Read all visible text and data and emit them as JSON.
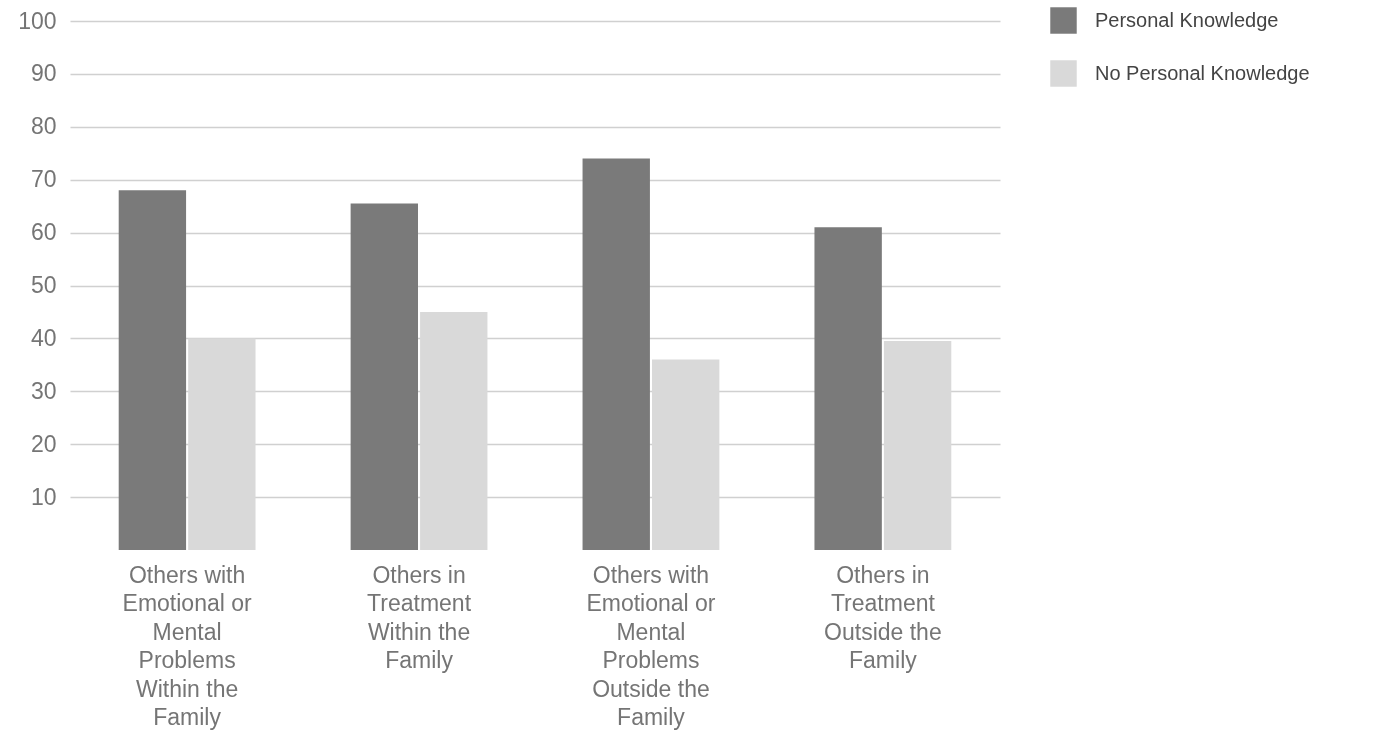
{
  "chart_data": {
    "type": "bar",
    "categories": [
      "Others with Emotional or Mental Problems Within the Family",
      "Others in Treatment Within the Family",
      "Others with Emotional or Mental Problems Outside the Family",
      "Others in Treatment Outside the Family"
    ],
    "series": [
      {
        "name": "Personal Knowledge",
        "color": "#7a7a7a",
        "values": [
          68,
          65.5,
          74,
          61
        ]
      },
      {
        "name": "No Personal Knowledge",
        "color": "#d9d9d9",
        "values": [
          40,
          45,
          36,
          39.5
        ]
      }
    ],
    "ylim": [
      0,
      100
    ],
    "yticks": [
      10,
      20,
      30,
      40,
      50,
      60,
      70,
      80,
      90,
      100
    ],
    "grid": "y",
    "legend": "top right"
  }
}
